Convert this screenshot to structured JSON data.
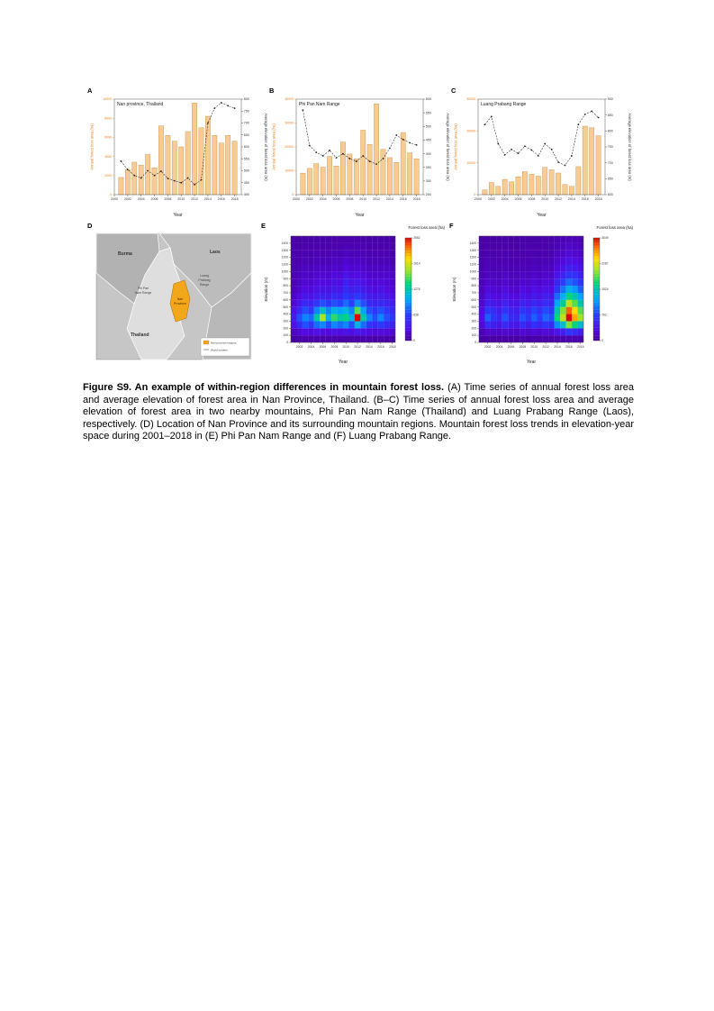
{
  "colors": {
    "bar_fill": "#f7cb94",
    "bar_edge": "#c98f45",
    "axis_orange": "#e8821e",
    "line_black": "#222222",
    "nan_orange": "#f2a71b"
  },
  "caption": {
    "bold": "Figure S9. An example of within-region differences in mountain forest loss.",
    "text": " (A) Time series of annual forest loss area and average elevation of forest area in Nan Province, Thailand. (B–C) Time series of annual forest loss area and average elevation of forest area in two nearby mountains, Phi Pan Nam Range (Thailand) and Luang Prabang Range (Laos), respectively. (D) Location of Nan Province and its surrounding mountain regions. Mountain forest loss trends in elevation-year space during 2001–2018 in (E) Phi Pan Nam Range and (F) Luang Prabang Range."
  },
  "chart_data": [
    {
      "letter": "A",
      "type": "bar+line",
      "title": "Nan province, Thailand",
      "x_label": "Year",
      "left_axis_label": "Annual forest loss area (ha)",
      "right_axis_label": "Average elevation of forest loss area (m)",
      "years": [
        2001,
        2002,
        2003,
        2004,
        2005,
        2006,
        2007,
        2008,
        2009,
        2010,
        2011,
        2012,
        2013,
        2014,
        2015,
        2016,
        2017,
        2018
      ],
      "bars": [
        1800,
        2600,
        3400,
        3100,
        4200,
        2800,
        7200,
        6200,
        5600,
        5000,
        6600,
        9600,
        7000,
        8200,
        6200,
        5400,
        6200,
        5600
      ],
      "line": [
        540,
        505,
        480,
        470,
        500,
        480,
        498,
        468,
        458,
        450,
        470,
        442,
        462,
        700,
        762,
        785,
        772,
        762
      ],
      "left_range": [
        0,
        10000
      ],
      "left_ticks": [
        0,
        2000,
        4000,
        6000,
        8000,
        10000
      ],
      "right_range": [
        400,
        800
      ],
      "right_ticks": [
        400,
        450,
        500,
        550,
        600,
        650,
        700,
        750,
        800
      ],
      "x_range": [
        2000,
        2019
      ],
      "x_ticks": [
        2000,
        2002,
        2004,
        2006,
        2008,
        2010,
        2012,
        2014,
        2016,
        2018
      ]
    },
    {
      "letter": "B",
      "type": "bar+line",
      "title": "Phi Pan Nam Range",
      "x_label": "Year",
      "left_axis_label": "Annual forest loss area (ha)",
      "right_axis_label": "Average elevation of forest loss area (m)",
      "years": [
        2001,
        2002,
        2003,
        2004,
        2005,
        2006,
        2007,
        2008,
        2009,
        2010,
        2011,
        2012,
        2013,
        2014,
        2015,
        2016,
        2017,
        2018
      ],
      "bars": [
        9000,
        11000,
        13000,
        11500,
        16000,
        12000,
        22000,
        17000,
        15000,
        27000,
        21000,
        38000,
        19000,
        15500,
        13500,
        26000,
        17500,
        15000
      ],
      "line": [
        560,
        430,
        405,
        392,
        412,
        385,
        400,
        382,
        372,
        392,
        372,
        362,
        382,
        420,
        468,
        452,
        440,
        432
      ],
      "left_range": [
        0,
        40000
      ],
      "left_ticks": [
        0,
        10000,
        20000,
        30000,
        40000
      ],
      "right_range": [
        250,
        600
      ],
      "right_ticks": [
        250,
        300,
        350,
        400,
        450,
        500,
        550,
        600
      ],
      "x_range": [
        2000,
        2019
      ],
      "x_ticks": [
        2000,
        2002,
        2004,
        2006,
        2008,
        2010,
        2012,
        2014,
        2016,
        2018
      ]
    },
    {
      "letter": "C",
      "type": "bar+line",
      "title": "Luang Prabang Range",
      "x_label": "Year",
      "left_axis_label": "Annual forest loss area (ha)",
      "right_axis_label": "Average elevation of forest loss area (m)",
      "years": [
        2001,
        2002,
        2003,
        2004,
        2005,
        2006,
        2007,
        2008,
        2009,
        2010,
        2011,
        2012,
        2013,
        2014,
        2015,
        2016,
        2017,
        2018
      ],
      "bars": [
        1500,
        3800,
        2600,
        4800,
        4000,
        5600,
        7200,
        6400,
        5800,
        8600,
        7800,
        6800,
        3200,
        2600,
        8800,
        21500,
        21000,
        18500
      ],
      "line": [
        820,
        845,
        760,
        725,
        742,
        730,
        752,
        740,
        722,
        760,
        742,
        702,
        692,
        722,
        820,
        852,
        862,
        842
      ],
      "left_range": [
        0,
        30000
      ],
      "left_ticks": [
        0,
        10000,
        20000,
        30000
      ],
      "right_range": [
        600,
        900
      ],
      "right_ticks": [
        600,
        650,
        700,
        750,
        800,
        850,
        900
      ],
      "x_range": [
        2000,
        2019
      ],
      "x_ticks": [
        2000,
        2002,
        2004,
        2006,
        2008,
        2010,
        2012,
        2014,
        2016,
        2018
      ]
    },
    {
      "letter": "E",
      "type": "heatmap",
      "colorbar_title": "Forest loss area (ha)",
      "x_label": "Year",
      "y_label": "Elevation (m)",
      "years": [
        2001,
        2002,
        2003,
        2004,
        2005,
        2006,
        2007,
        2008,
        2009,
        2010,
        2011,
        2012,
        2013,
        2014,
        2015,
        2016,
        2017,
        2018
      ],
      "x_ticks": [
        2002,
        2004,
        2006,
        2008,
        2010,
        2012,
        2014,
        2016,
        2018
      ],
      "elev_ticks": [
        0,
        100,
        200,
        300,
        400,
        500,
        600,
        700,
        800,
        900,
        1000,
        1100,
        1200,
        1300,
        1400
      ],
      "elev_max": 1500,
      "max": 2552,
      "colorbar_ticks": [
        0,
        638,
        1276,
        1914,
        2552
      ],
      "matrix_row_order": "bottom-to-top",
      "matrix": [
        [
          30,
          40,
          50,
          40,
          60,
          50,
          40,
          50,
          40,
          50,
          40,
          60,
          50,
          40,
          30,
          40,
          30,
          30
        ],
        [
          120,
          200,
          260,
          220,
          300,
          260,
          240,
          300,
          260,
          320,
          280,
          360,
          300,
          260,
          220,
          260,
          220,
          200
        ],
        [
          300,
          500,
          700,
          600,
          800,
          900,
          700,
          900,
          800,
          900,
          700,
          1100,
          800,
          600,
          500,
          600,
          500,
          450
        ],
        [
          400,
          700,
          900,
          800,
          1300,
          1800,
          1100,
          1500,
          1300,
          1400,
          1100,
          2550,
          1300,
          900,
          700,
          900,
          700,
          600
        ],
        [
          300,
          500,
          700,
          600,
          900,
          1200,
          900,
          1100,
          1000,
          1100,
          900,
          1600,
          1000,
          700,
          600,
          700,
          600,
          500
        ],
        [
          200,
          350,
          500,
          450,
          600,
          700,
          600,
          700,
          650,
          800,
          650,
          900,
          700,
          500,
          450,
          500,
          450,
          400
        ],
        [
          150,
          250,
          350,
          300,
          400,
          450,
          400,
          500,
          450,
          600,
          500,
          600,
          500,
          400,
          350,
          400,
          350,
          300
        ],
        [
          100,
          180,
          250,
          220,
          300,
          320,
          300,
          380,
          350,
          500,
          400,
          450,
          380,
          300,
          260,
          300,
          260,
          230
        ],
        [
          80,
          140,
          200,
          180,
          240,
          260,
          240,
          300,
          280,
          420,
          330,
          360,
          300,
          240,
          210,
          240,
          210,
          190
        ],
        [
          60,
          110,
          160,
          140,
          190,
          200,
          190,
          240,
          220,
          330,
          260,
          280,
          240,
          190,
          170,
          190,
          170,
          150
        ],
        [
          50,
          80,
          120,
          110,
          140,
          150,
          140,
          180,
          160,
          240,
          190,
          200,
          180,
          140,
          130,
          140,
          130,
          110
        ],
        [
          40,
          60,
          90,
          80,
          100,
          110,
          100,
          130,
          120,
          170,
          140,
          150,
          130,
          100,
          90,
          100,
          90,
          80
        ],
        [
          30,
          45,
          65,
          60,
          75,
          80,
          75,
          95,
          85,
          120,
          100,
          105,
          95,
          75,
          65,
          75,
          65,
          60
        ],
        [
          20,
          30,
          45,
          40,
          50,
          55,
          50,
          65,
          60,
          80,
          70,
          75,
          65,
          50,
          45,
          50,
          45,
          40
        ],
        [
          15,
          20,
          30,
          28,
          35,
          38,
          35,
          45,
          40,
          55,
          48,
          50,
          45,
          35,
          30,
          35,
          30,
          28
        ]
      ]
    },
    {
      "letter": "F",
      "type": "heatmap",
      "colorbar_title": "Forest loss area (ha)",
      "x_label": "Year",
      "y_label": "Elevation (m)",
      "years": [
        2001,
        2002,
        2003,
        2004,
        2005,
        2006,
        2007,
        2008,
        2009,
        2010,
        2011,
        2012,
        2013,
        2014,
        2015,
        2016,
        2017,
        2018
      ],
      "x_ticks": [
        2002,
        2004,
        2006,
        2008,
        2010,
        2012,
        2014,
        2016,
        2018
      ],
      "elev_ticks": [
        0,
        100,
        200,
        300,
        400,
        500,
        600,
        700,
        800,
        900,
        1000,
        1100,
        1200,
        1300,
        1400
      ],
      "elev_max": 1500,
      "max": 3049,
      "colorbar_ticks": [
        0,
        762,
        1524,
        2287,
        3049
      ],
      "matrix_row_order": "bottom-to-top",
      "matrix": [
        [
          20,
          30,
          35,
          30,
          40,
          35,
          30,
          40,
          35,
          40,
          35,
          45,
          40,
          60,
          70,
          90,
          80,
          70
        ],
        [
          100,
          200,
          220,
          180,
          240,
          200,
          180,
          240,
          200,
          260,
          220,
          280,
          240,
          400,
          500,
          700,
          600,
          500
        ],
        [
          250,
          600,
          500,
          400,
          600,
          450,
          400,
          600,
          500,
          650,
          550,
          700,
          600,
          1100,
          1400,
          2000,
          1700,
          1400
        ],
        [
          350,
          900,
          700,
          550,
          850,
          600,
          550,
          850,
          700,
          900,
          750,
          950,
          850,
          1700,
          2200,
          3049,
          2600,
          2100
        ],
        [
          300,
          700,
          600,
          480,
          700,
          520,
          480,
          700,
          600,
          780,
          650,
          820,
          720,
          1500,
          2000,
          2800,
          2400,
          1900
        ],
        [
          230,
          500,
          430,
          370,
          520,
          400,
          370,
          520,
          450,
          580,
          500,
          620,
          540,
          1200,
          1600,
          2200,
          1900,
          1500
        ],
        [
          180,
          380,
          330,
          280,
          400,
          310,
          280,
          400,
          350,
          450,
          380,
          480,
          420,
          950,
          1250,
          1700,
          1500,
          1200
        ],
        [
          140,
          280,
          250,
          210,
          300,
          230,
          210,
          300,
          260,
          340,
          290,
          360,
          310,
          700,
          1000,
          1300,
          1150,
          900
        ],
        [
          110,
          210,
          190,
          160,
          220,
          175,
          160,
          220,
          200,
          260,
          220,
          270,
          240,
          520,
          750,
          950,
          850,
          680
        ],
        [
          85,
          160,
          140,
          120,
          170,
          135,
          120,
          170,
          150,
          195,
          165,
          205,
          180,
          390,
          520,
          700,
          630,
          500
        ],
        [
          65,
          120,
          105,
          90,
          125,
          100,
          90,
          125,
          110,
          145,
          125,
          150,
          135,
          280,
          380,
          500,
          450,
          360
        ],
        [
          50,
          90,
          80,
          68,
          95,
          76,
          68,
          95,
          85,
          110,
          93,
          115,
          100,
          200,
          270,
          360,
          320,
          260
        ],
        [
          38,
          65,
          60,
          50,
          70,
          56,
          50,
          70,
          62,
          80,
          70,
          85,
          75,
          145,
          195,
          260,
          230,
          185
        ],
        [
          28,
          48,
          44,
          38,
          52,
          42,
          38,
          52,
          46,
          60,
          52,
          62,
          55,
          105,
          140,
          185,
          165,
          135
        ],
        [
          20,
          35,
          32,
          28,
          38,
          30,
          28,
          38,
          34,
          44,
          38,
          46,
          40,
          75,
          100,
          135,
          120,
          98
        ]
      ]
    }
  ],
  "map": {
    "letter": "D",
    "labels": {
      "burma": "Burma",
      "laos": "Laos",
      "thailand": "Thailand",
      "phi_pan_nam": [
        "Phi Pan",
        "Nam Range"
      ],
      "luang_prabang": [
        "Luang",
        "Prabang",
        "Range"
      ],
      "nan_province": [
        "Nan",
        "Province"
      ],
      "legend": [
        "Nan province regions",
        "World borders"
      ]
    }
  }
}
